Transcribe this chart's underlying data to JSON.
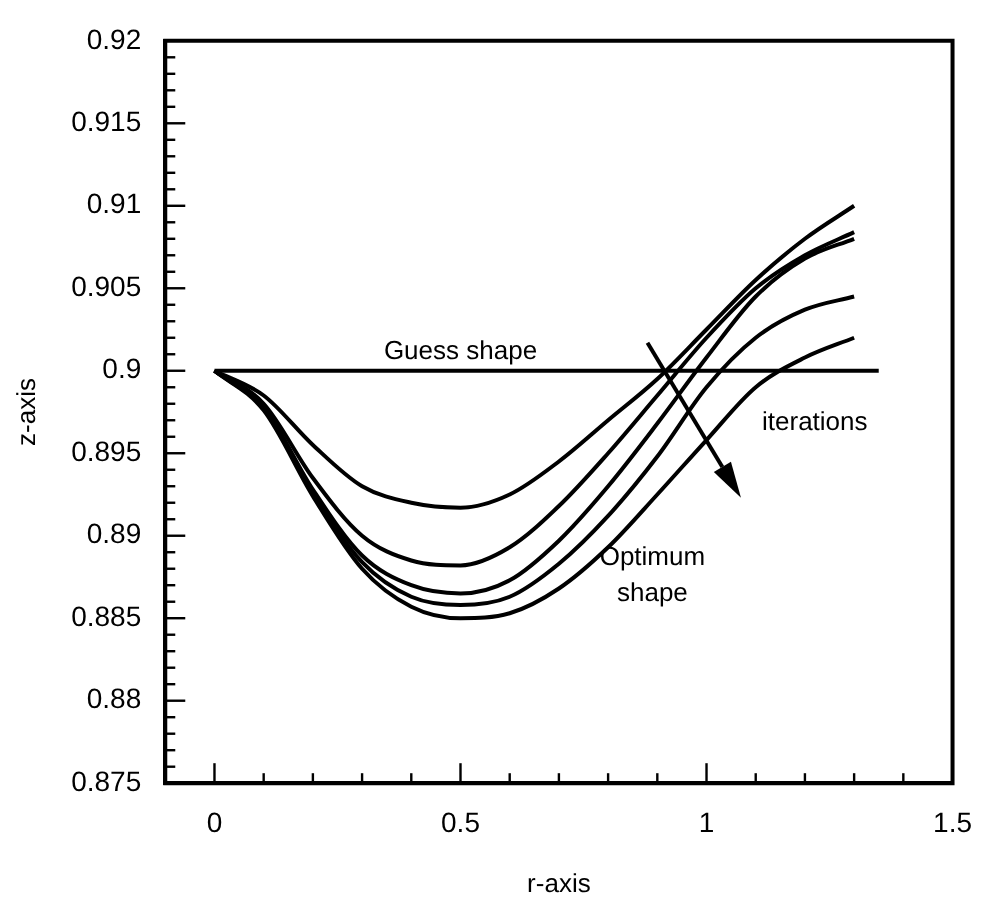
{
  "chart_data": {
    "type": "line",
    "xlabel": "r-axis",
    "ylabel": "z-axis",
    "xlim": [
      -0.1,
      1.5
    ],
    "ylim": [
      0.875,
      0.92
    ],
    "xticks": [
      0,
      {
        "value": 0.1,
        "label": null
      },
      {
        "value": 0.2,
        "label": null
      },
      {
        "value": 0.3,
        "label": null
      },
      {
        "value": 0.4,
        "label": null
      },
      0.5,
      {
        "value": 0.6,
        "label": null
      },
      {
        "value": 0.7,
        "label": null
      },
      {
        "value": 0.8,
        "label": null
      },
      {
        "value": 0.9,
        "label": null
      },
      1,
      {
        "value": 1.1,
        "label": null
      },
      {
        "value": 1.2,
        "label": null
      },
      {
        "value": 1.3,
        "label": null
      },
      {
        "value": 1.4,
        "label": null
      },
      1.5
    ],
    "yticks": [
      0.875,
      {
        "value": 0.876,
        "label": null
      },
      {
        "value": 0.877,
        "label": null
      },
      {
        "value": 0.878,
        "label": null
      },
      {
        "value": 0.879,
        "label": null
      },
      0.88,
      {
        "value": 0.881,
        "label": null
      },
      {
        "value": 0.882,
        "label": null
      },
      {
        "value": 0.883,
        "label": null
      },
      {
        "value": 0.884,
        "label": null
      },
      0.885,
      {
        "value": 0.886,
        "label": null
      },
      {
        "value": 0.887,
        "label": null
      },
      {
        "value": 0.888,
        "label": null
      },
      {
        "value": 0.889,
        "label": null
      },
      0.89,
      {
        "value": 0.891,
        "label": null
      },
      {
        "value": 0.892,
        "label": null
      },
      {
        "value": 0.893,
        "label": null
      },
      {
        "value": 0.894,
        "label": null
      },
      0.895,
      {
        "value": 0.896,
        "label": null
      },
      {
        "value": 0.897,
        "label": null
      },
      {
        "value": 0.898,
        "label": null
      },
      {
        "value": 0.899,
        "label": null
      },
      0.9,
      {
        "value": 0.901,
        "label": null
      },
      {
        "value": 0.902,
        "label": null
      },
      {
        "value": 0.903,
        "label": null
      },
      {
        "value": 0.904,
        "label": null
      },
      0.905,
      {
        "value": 0.906,
        "label": null
      },
      {
        "value": 0.907,
        "label": null
      },
      {
        "value": 0.908,
        "label": null
      },
      {
        "value": 0.909,
        "label": null
      },
      0.91,
      {
        "value": 0.911,
        "label": null
      },
      {
        "value": 0.912,
        "label": null
      },
      {
        "value": 0.913,
        "label": null
      },
      {
        "value": 0.914,
        "label": null
      },
      0.915,
      {
        "value": 0.916,
        "label": null
      },
      {
        "value": 0.917,
        "label": null
      },
      {
        "value": 0.918,
        "label": null
      },
      {
        "value": 0.919,
        "label": null
      },
      0.92
    ],
    "x": [
      0,
      0.1,
      0.2,
      0.3,
      0.4,
      0.5,
      0.6,
      0.7,
      0.8,
      0.9,
      1.0,
      1.1,
      1.2,
      1.3
    ],
    "series": [
      {
        "color": "#000000",
        "x": [
          0,
          1.35
        ],
        "values": [
          0.9,
          0.9
        ]
      },
      {
        "color": "#000000",
        "values": [
          0.9,
          0.8985,
          0.8955,
          0.893,
          0.892,
          0.8917,
          0.8925,
          0.8945,
          0.897,
          0.8995,
          0.9025,
          0.9055,
          0.908,
          0.91
        ]
      },
      {
        "color": "#000000",
        "values": [
          0.9,
          0.898,
          0.8935,
          0.89,
          0.8885,
          0.8882,
          0.8893,
          0.8918,
          0.895,
          0.8985,
          0.902,
          0.905,
          0.907,
          0.9084
        ]
      },
      {
        "color": "#000000",
        "values": [
          0.9,
          0.8978,
          0.8928,
          0.8888,
          0.887,
          0.8865,
          0.8873,
          0.8897,
          0.893,
          0.8968,
          0.9008,
          0.9045,
          0.9068,
          0.908
        ]
      },
      {
        "color": "#000000",
        "values": [
          0.9,
          0.8977,
          0.8926,
          0.8884,
          0.8863,
          0.8858,
          0.8863,
          0.8883,
          0.8912,
          0.8948,
          0.899,
          0.902,
          0.9037,
          0.9045
        ]
      },
      {
        "color": "#000000",
        "values": [
          0.9,
          0.8976,
          0.8924,
          0.888,
          0.8857,
          0.885,
          0.8853,
          0.8868,
          0.8893,
          0.8925,
          0.8958,
          0.899,
          0.9008,
          0.902
        ]
      }
    ],
    "annotations": [
      {
        "text": "Guess shape",
        "x": 0.5,
        "y": 0.9
      },
      "iterations",
      "Optimum\nshape"
    ],
    "grid": false,
    "legend": false,
    "marker": "none",
    "line_style": "solid"
  }
}
